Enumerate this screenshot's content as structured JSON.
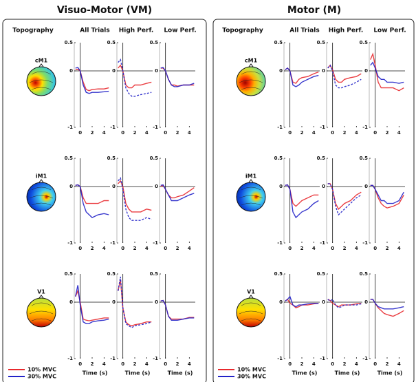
{
  "panels": [
    {
      "title": "Visuo-Motor (VM)",
      "column_headers": [
        "Topography",
        "All Trials",
        "High Perf.",
        "Low Perf."
      ],
      "row_labels": [
        "cM1",
        "iM1",
        "V1"
      ],
      "legend": [
        "10% MVC",
        "30% MVC"
      ]
    },
    {
      "title": "Motor (M)",
      "column_headers": [
        "Topography",
        "All Trials",
        "High Perf.",
        "Low Perf."
      ],
      "row_labels": [
        "cM1",
        "iM1",
        "V1"
      ],
      "legend": [
        "10% MVC",
        "30% MVC"
      ]
    }
  ],
  "chart_data": [
    {
      "type": "line",
      "x": [
        -0.8,
        -0.4,
        0,
        0.5,
        1,
        1.5,
        2,
        3,
        4,
        4.8
      ],
      "xlim": [
        -1,
        5
      ],
      "xticks": [
        0,
        2,
        4
      ],
      "ylim": [
        -1,
        0.5
      ],
      "yticks": [
        -1,
        0,
        0.5
      ],
      "series": [
        {
          "color": "#e8292d",
          "values": [
            0.02,
            0.03,
            0,
            -0.2,
            -0.33,
            -0.35,
            -0.33,
            -0.32,
            -0.32,
            -0.3
          ]
        },
        {
          "color": "#2222c8",
          "values": [
            0.05,
            0.06,
            0,
            -0.25,
            -0.38,
            -0.4,
            -0.38,
            -0.38,
            -0.37,
            -0.36
          ]
        }
      ]
    },
    {
      "type": "line",
      "x": [
        -0.8,
        -0.4,
        0,
        0.5,
        1,
        1.5,
        2,
        3,
        4,
        4.8
      ],
      "xlim": [
        -1,
        5
      ],
      "xticks": [
        0,
        2,
        4
      ],
      "ylim": [
        -1,
        0.5
      ],
      "yticks": [
        -1,
        0,
        0.5
      ],
      "series": [
        {
          "color": "#e8292d",
          "values": [
            0.05,
            0.1,
            0,
            -0.25,
            -0.3,
            -0.3,
            -0.25,
            -0.25,
            -0.22,
            -0.2
          ]
        },
        {
          "color": "#2222c8",
          "values": [
            0.15,
            0.2,
            0,
            -0.3,
            -0.4,
            -0.45,
            -0.45,
            -0.42,
            -0.4,
            -0.38
          ]
        }
      ]
    },
    {
      "type": "line",
      "x": [
        -0.8,
        -0.4,
        0,
        0.5,
        1,
        1.5,
        2,
        3,
        4,
        4.8
      ],
      "xlim": [
        -1,
        5
      ],
      "xticks": [
        0,
        2,
        4
      ],
      "ylim": [
        -1,
        0.5
      ],
      "yticks": [
        -1,
        0,
        0.5
      ],
      "series": [
        {
          "color": "#e8292d",
          "values": [
            0.05,
            0.05,
            0,
            -0.15,
            -0.25,
            -0.25,
            -0.27,
            -0.25,
            -0.25,
            -0.25
          ]
        },
        {
          "color": "#2222c8",
          "values": [
            0.05,
            0.06,
            0,
            -0.15,
            -0.25,
            -0.28,
            -0.28,
            -0.25,
            -0.25,
            -0.22
          ]
        }
      ]
    },
    {
      "type": "line",
      "x": [
        -0.8,
        -0.4,
        0,
        0.5,
        1,
        1.5,
        2,
        3,
        4,
        4.8
      ],
      "xlim": [
        -1,
        5
      ],
      "xticks": [
        0,
        2,
        4
      ],
      "ylim": [
        -1,
        0.5
      ],
      "yticks": [
        -1,
        0,
        0.5
      ],
      "series": [
        {
          "color": "#e8292d",
          "values": [
            0.02,
            0.03,
            0,
            -0.2,
            -0.3,
            -0.3,
            -0.3,
            -0.3,
            -0.25,
            -0.25
          ]
        },
        {
          "color": "#2222c8",
          "values": [
            0.02,
            0.03,
            0,
            -0.3,
            -0.45,
            -0.5,
            -0.55,
            -0.5,
            -0.48,
            -0.5
          ]
        }
      ]
    },
    {
      "type": "line",
      "x": [
        -0.8,
        -0.4,
        0,
        0.5,
        1,
        1.5,
        2,
        3,
        4,
        4.8
      ],
      "xlim": [
        -1,
        5
      ],
      "xticks": [
        0,
        2,
        4
      ],
      "ylim": [
        -1,
        0.5
      ],
      "yticks": [
        -1,
        0,
        0.5
      ],
      "series": [
        {
          "color": "#e8292d",
          "values": [
            0.05,
            0.1,
            0,
            -0.3,
            -0.4,
            -0.45,
            -0.45,
            -0.45,
            -0.4,
            -0.42
          ]
        },
        {
          "color": "#2222c8",
          "values": [
            0.1,
            0.15,
            -0.05,
            -0.4,
            -0.55,
            -0.6,
            -0.6,
            -0.6,
            -0.55,
            -0.58
          ]
        }
      ]
    },
    {
      "type": "line",
      "x": [
        -0.8,
        -0.4,
        0,
        0.5,
        1,
        1.5,
        2,
        3,
        4,
        4.8
      ],
      "xlim": [
        -1,
        5
      ],
      "xticks": [
        0,
        2,
        4
      ],
      "ylim": [
        -1,
        0.5
      ],
      "yticks": [
        -1,
        0,
        0.5
      ],
      "series": [
        {
          "color": "#e8292d",
          "values": [
            0,
            0.02,
            -0.05,
            -0.15,
            -0.2,
            -0.2,
            -0.18,
            -0.15,
            -0.08,
            -0.02
          ]
        },
        {
          "color": "#2222c8",
          "values": [
            0.02,
            0.03,
            -0.05,
            -0.15,
            -0.25,
            -0.25,
            -0.25,
            -0.2,
            -0.15,
            -0.12
          ]
        }
      ]
    },
    {
      "type": "line",
      "x": [
        -0.8,
        -0.4,
        0,
        0.5,
        1,
        1.5,
        2,
        3,
        4,
        4.8
      ],
      "xlim": [
        -1,
        5
      ],
      "xticks": [
        0,
        2,
        4
      ],
      "ylim": [
        -1,
        0.5
      ],
      "yticks": [
        -1,
        0,
        0.5
      ],
      "xlabel": "Time (s)",
      "series": [
        {
          "color": "#e8292d",
          "values": [
            0.1,
            0.2,
            0,
            -0.3,
            -0.32,
            -0.33,
            -0.32,
            -0.3,
            -0.28,
            -0.28
          ]
        },
        {
          "color": "#2222c8",
          "values": [
            0.1,
            0.3,
            -0.05,
            -0.35,
            -0.38,
            -0.38,
            -0.35,
            -0.33,
            -0.32,
            -0.3
          ]
        }
      ]
    },
    {
      "type": "line",
      "x": [
        -0.8,
        -0.4,
        0,
        0.5,
        1,
        1.5,
        2,
        3,
        4,
        4.8
      ],
      "xlim": [
        -1,
        5
      ],
      "xticks": [
        0,
        2,
        4
      ],
      "ylim": [
        -1,
        0.5
      ],
      "yticks": [
        -1,
        0,
        0.5
      ],
      "xlabel": "Time (s)",
      "series": [
        {
          "color": "#e8292d",
          "values": [
            0.2,
            0.4,
            -0.1,
            -0.35,
            -0.4,
            -0.42,
            -0.4,
            -0.38,
            -0.35,
            -0.35
          ]
        },
        {
          "color": "#2222c8",
          "values": [
            0.2,
            0.45,
            -0.1,
            -0.38,
            -0.42,
            -0.45,
            -0.42,
            -0.4,
            -0.38,
            -0.35
          ]
        }
      ]
    },
    {
      "type": "line",
      "x": [
        -0.8,
        -0.4,
        0,
        0.5,
        1,
        1.5,
        2,
        3,
        4,
        4.8
      ],
      "xlim": [
        -1,
        5
      ],
      "xticks": [
        0,
        2,
        4
      ],
      "ylim": [
        -1,
        0.5
      ],
      "yticks": [
        -1,
        0,
        0.5
      ],
      "xlabel": "Time (s)",
      "series": [
        {
          "color": "#e8292d",
          "values": [
            0.02,
            0.03,
            -0.05,
            -0.25,
            -0.3,
            -0.3,
            -0.3,
            -0.3,
            -0.27,
            -0.27
          ]
        },
        {
          "color": "#2222c8",
          "values": [
            0.02,
            0.03,
            -0.05,
            -0.25,
            -0.32,
            -0.32,
            -0.32,
            -0.3,
            -0.28,
            -0.28
          ]
        }
      ]
    },
    {
      "type": "line",
      "x": [
        -0.8,
        -0.4,
        0,
        0.5,
        1,
        1.5,
        2,
        3,
        4,
        4.8
      ],
      "xlim": [
        -1,
        5
      ],
      "xticks": [
        0,
        2,
        4
      ],
      "ylim": [
        -1,
        0.5
      ],
      "yticks": [
        -1,
        0,
        0.5
      ],
      "series": [
        {
          "color": "#e8292d",
          "values": [
            0.02,
            0.05,
            0,
            -0.2,
            -0.22,
            -0.15,
            -0.12,
            -0.1,
            -0.05,
            -0.02
          ]
        },
        {
          "color": "#2222c8",
          "values": [
            0.02,
            0.05,
            0,
            -0.25,
            -0.28,
            -0.25,
            -0.2,
            -0.15,
            -0.1,
            -0.08
          ]
        }
      ]
    },
    {
      "type": "line",
      "x": [
        -0.8,
        -0.4,
        0,
        0.5,
        1,
        1.5,
        2,
        3,
        4,
        4.8
      ],
      "xlim": [
        -1,
        5
      ],
      "xticks": [
        0,
        2,
        4
      ],
      "ylim": [
        -1,
        0.5
      ],
      "yticks": [
        -1,
        0,
        0.5
      ],
      "series": [
        {
          "color": "#e8292d",
          "values": [
            0.05,
            0.1,
            0.02,
            -0.15,
            -0.2,
            -0.2,
            -0.15,
            -0.12,
            -0.1,
            -0.05
          ]
        },
        {
          "color": "#2222c8",
          "values": [
            0.05,
            0.1,
            0,
            -0.25,
            -0.3,
            -0.3,
            -0.28,
            -0.25,
            -0.2,
            -0.15
          ]
        }
      ]
    },
    {
      "type": "line",
      "x": [
        -0.8,
        -0.4,
        0,
        0.5,
        1,
        1.5,
        2,
        3,
        4,
        4.8
      ],
      "xlim": [
        -1,
        5
      ],
      "xticks": [
        0,
        2,
        4
      ],
      "ylim": [
        -1,
        0.5
      ],
      "yticks": [
        -1,
        0,
        0.5
      ],
      "series": [
        {
          "color": "#e8292d",
          "values": [
            0.2,
            0.3,
            0.1,
            -0.2,
            -0.3,
            -0.3,
            -0.3,
            -0.3,
            -0.35,
            -0.3
          ]
        },
        {
          "color": "#2222c8",
          "values": [
            0.1,
            0.15,
            0.05,
            -0.1,
            -0.15,
            -0.15,
            -0.2,
            -0.2,
            -0.22,
            -0.2
          ]
        }
      ]
    },
    {
      "type": "line",
      "x": [
        -0.8,
        -0.4,
        0,
        0.5,
        1,
        1.5,
        2,
        3,
        4,
        4.8
      ],
      "xlim": [
        -1,
        5
      ],
      "xticks": [
        0,
        2,
        4
      ],
      "ylim": [
        -1,
        0.5
      ],
      "yticks": [
        -1,
        0,
        0.5
      ],
      "series": [
        {
          "color": "#e8292d",
          "values": [
            0.02,
            0.03,
            -0.05,
            -0.3,
            -0.35,
            -0.3,
            -0.25,
            -0.2,
            -0.15,
            -0.15
          ]
        },
        {
          "color": "#2222c8",
          "values": [
            0.02,
            0.03,
            -0.05,
            -0.45,
            -0.55,
            -0.5,
            -0.45,
            -0.4,
            -0.3,
            -0.25
          ]
        }
      ]
    },
    {
      "type": "line",
      "x": [
        -0.8,
        -0.4,
        0,
        0.5,
        1,
        1.5,
        2,
        3,
        4,
        4.8
      ],
      "xlim": [
        -1,
        5
      ],
      "xticks": [
        0,
        2,
        4
      ],
      "ylim": [
        -1,
        0.5
      ],
      "yticks": [
        -1,
        0,
        0.5
      ],
      "series": [
        {
          "color": "#e8292d",
          "values": [
            0.05,
            0.05,
            -0.05,
            -0.3,
            -0.4,
            -0.35,
            -0.3,
            -0.25,
            -0.15,
            -0.1
          ]
        },
        {
          "color": "#2222c8",
          "values": [
            0.05,
            0.05,
            -0.05,
            -0.35,
            -0.5,
            -0.45,
            -0.4,
            -0.3,
            -0.2,
            -0.15
          ]
        }
      ]
    },
    {
      "type": "line",
      "x": [
        -0.8,
        -0.4,
        0,
        0.5,
        1,
        1.5,
        2,
        3,
        4,
        4.8
      ],
      "xlim": [
        -1,
        5
      ],
      "xticks": [
        0,
        2,
        4
      ],
      "ylim": [
        -1,
        0.5
      ],
      "yticks": [
        -1,
        0,
        0.5
      ],
      "series": [
        {
          "color": "#e8292d",
          "values": [
            0.02,
            0.02,
            -0.05,
            -0.2,
            -0.3,
            -0.35,
            -0.38,
            -0.35,
            -0.3,
            -0.15
          ]
        },
        {
          "color": "#2222c8",
          "values": [
            0.02,
            0.02,
            -0.05,
            -0.15,
            -0.25,
            -0.25,
            -0.3,
            -0.3,
            -0.25,
            -0.1
          ]
        }
      ]
    },
    {
      "type": "line",
      "x": [
        -0.8,
        -0.4,
        0,
        0.5,
        1,
        1.5,
        2,
        3,
        4,
        4.8
      ],
      "xlim": [
        -1,
        5
      ],
      "xticks": [
        0,
        2,
        4
      ],
      "ylim": [
        -1,
        0.5
      ],
      "yticks": [
        -1,
        0,
        0.5
      ],
      "xlabel": "Time (s)",
      "series": [
        {
          "color": "#e8292d",
          "values": [
            0.02,
            0.05,
            -0.02,
            -0.05,
            -0.1,
            -0.08,
            -0.05,
            -0.05,
            -0.03,
            -0.02
          ]
        },
        {
          "color": "#2222c8",
          "values": [
            0.02,
            0.05,
            0.1,
            -0.05,
            -0.08,
            -0.05,
            -0.05,
            -0.03,
            -0.02,
            -0.02
          ]
        }
      ]
    },
    {
      "type": "line",
      "x": [
        -0.8,
        -0.4,
        0,
        0.5,
        1,
        1.5,
        2,
        3,
        4,
        4.8
      ],
      "xlim": [
        -1,
        5
      ],
      "xticks": [
        0,
        2,
        4
      ],
      "ylim": [
        -1,
        0.5
      ],
      "yticks": [
        -1,
        0,
        0.5
      ],
      "xlabel": "Time (s)",
      "series": [
        {
          "color": "#e8292d",
          "values": [
            0.05,
            0.03,
            -0.02,
            -0.05,
            -0.08,
            -0.05,
            -0.05,
            -0.05,
            -0.03,
            -0.02
          ]
        },
        {
          "color": "#2222c8",
          "values": [
            0.05,
            0.02,
            0.05,
            -0.05,
            -0.1,
            -0.08,
            -0.05,
            -0.05,
            -0.05,
            -0.03
          ]
        }
      ]
    },
    {
      "type": "line",
      "x": [
        -0.8,
        -0.4,
        0,
        0.5,
        1,
        1.5,
        2,
        3,
        4,
        4.8
      ],
      "xlim": [
        -1,
        5
      ],
      "xticks": [
        0,
        2,
        4
      ],
      "ylim": [
        -1,
        0.5
      ],
      "yticks": [
        -1,
        0,
        0.5
      ],
      "xlabel": "Time (s)",
      "series": [
        {
          "color": "#e8292d",
          "values": [
            0.05,
            0.05,
            -0.02,
            -0.1,
            -0.15,
            -0.2,
            -0.22,
            -0.25,
            -0.2,
            -0.15
          ]
        },
        {
          "color": "#2222c8",
          "values": [
            0.05,
            0.05,
            -0.02,
            -0.08,
            -0.1,
            -0.12,
            -0.12,
            -0.12,
            -0.1,
            -0.08
          ]
        }
      ]
    }
  ]
}
